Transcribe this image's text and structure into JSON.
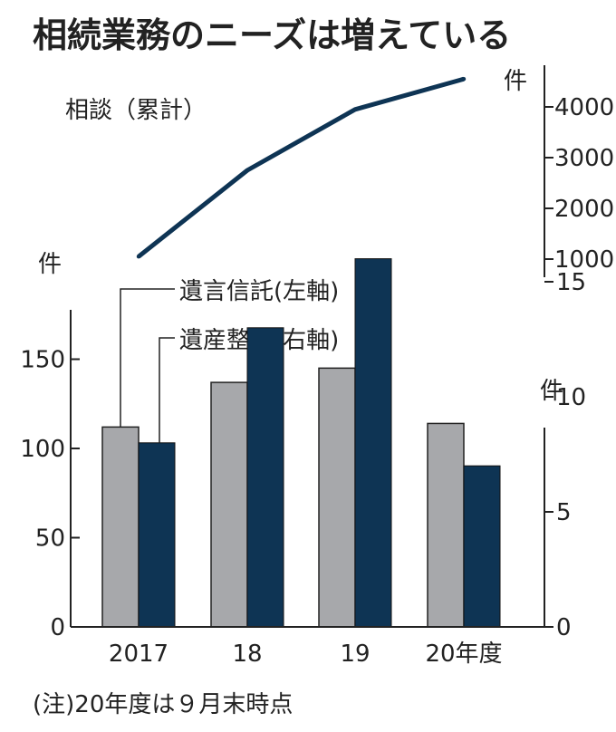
{
  "title": "相続業務のニーズは増えている",
  "footnote": "(注)20年度は９月末時点",
  "colors": {
    "gray_bar": "#a7a8ab",
    "navy": "#0e3454",
    "axis": "#222222"
  },
  "chart_data": [
    {
      "type": "line",
      "label": "相談（累計）",
      "unit": "件",
      "categories": [
        "2017",
        "18",
        "19",
        "20年度"
      ],
      "values": [
        1050,
        2750,
        3950,
        4550
      ],
      "yticks": [
        1000,
        2000,
        3000,
        4000
      ],
      "ylim": [
        700,
        4900
      ],
      "y_axis_side": "right"
    },
    {
      "type": "bar",
      "categories": [
        "2017",
        "18",
        "19",
        "20年度"
      ],
      "series": [
        {
          "name": "遺言信託(左軸)",
          "axis": "left",
          "unit": "件",
          "values": [
            112,
            137,
            145,
            114
          ]
        },
        {
          "name": "遺産整理(右軸)",
          "axis": "right",
          "unit": "件",
          "values": [
            8,
            13,
            16,
            7
          ]
        }
      ],
      "left_axis": {
        "unit": "件",
        "ticks": [
          0,
          50,
          100,
          150
        ],
        "ylim": [
          0,
          180
        ]
      },
      "right_axis": {
        "unit": "件",
        "ticks": [
          0,
          5,
          10,
          15
        ],
        "ylim": [
          0,
          17.5
        ]
      }
    }
  ]
}
